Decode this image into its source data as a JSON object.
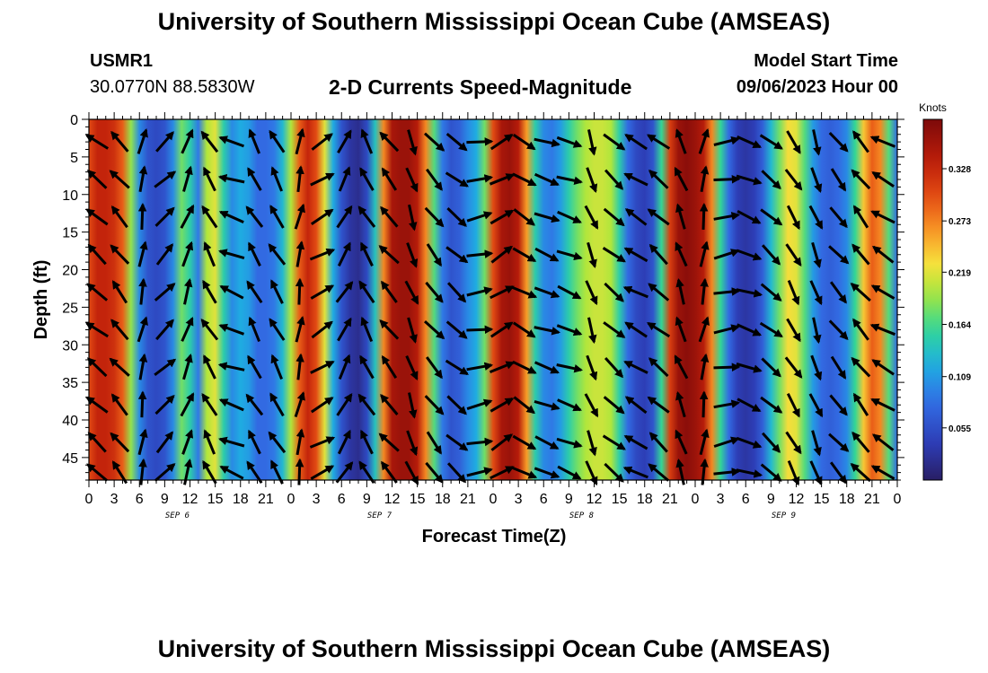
{
  "header": {
    "title": "University of Southern Mississippi Ocean Cube (AMSEAS)",
    "station_id": "USMR1",
    "coordinates": "30.0770N  88.5830W",
    "subtitle": "2-D Currents Speed-Magnitude",
    "start_label": "Model Start Time",
    "start_value": "09/06/2023 Hour 00"
  },
  "footer": {
    "title": "University of Southern Mississippi Ocean Cube (AMSEAS)"
  },
  "chart_data": {
    "type": "heatmap",
    "title": "2-D Currents Speed-Magnitude",
    "xlabel": "Forecast Time(Z)",
    "ylabel": "Depth (ft)",
    "x_hours": [
      0,
      96
    ],
    "x_tick_labels": [
      "0",
      "3",
      "6",
      "9",
      "12",
      "15",
      "18",
      "21",
      "0",
      "3",
      "6",
      "9",
      "12",
      "15",
      "18",
      "21",
      "0",
      "3",
      "6",
      "9",
      "12",
      "15",
      "18",
      "21",
      "0",
      "3",
      "6",
      "9",
      "12",
      "15",
      "18",
      "21",
      "0"
    ],
    "date_labels": [
      {
        "label": "SEP 6",
        "hour": 10.5
      },
      {
        "label": "SEP 7",
        "hour": 34.5
      },
      {
        "label": "SEP 8",
        "hour": 58.5
      },
      {
        "label": "SEP 9",
        "hour": 82.5
      }
    ],
    "y_range_ft": [
      0,
      48
    ],
    "y_ticks": [
      0,
      5,
      10,
      15,
      20,
      25,
      30,
      35,
      40,
      45
    ],
    "colorbar": {
      "unit": "Knots",
      "range": [
        0.0,
        0.38
      ],
      "tick_values": [
        0.055,
        0.109,
        0.164,
        0.219,
        0.273,
        0.328
      ],
      "tick_labels": [
        "0.055",
        "0.109",
        "0.164",
        "0.219",
        "0.273",
        "0.328"
      ]
    },
    "speed_profile": {
      "hours": [
        0,
        1,
        2,
        3,
        4,
        5,
        6,
        7,
        8,
        9,
        10,
        11,
        12,
        13,
        14,
        15,
        16,
        17,
        18,
        19,
        20,
        21,
        22,
        23,
        24,
        25,
        26,
        27,
        28,
        29,
        30,
        31,
        32,
        33,
        34,
        35,
        36,
        37,
        38,
        39,
        40,
        41,
        42,
        43,
        44,
        45,
        46,
        47,
        48,
        49,
        50,
        51,
        52,
        53,
        54,
        55,
        56,
        57,
        58,
        59,
        60,
        61,
        62,
        63,
        64,
        65,
        66,
        67,
        68,
        69,
        70,
        71,
        72,
        73,
        74,
        75,
        76,
        77,
        78,
        79,
        80,
        81,
        82,
        83,
        84,
        85,
        86,
        87,
        88,
        89,
        90,
        91,
        92,
        93,
        94,
        95,
        96
      ],
      "knots": [
        0.3,
        0.33,
        0.33,
        0.32,
        0.29,
        0.19,
        0.1,
        0.06,
        0.05,
        0.06,
        0.1,
        0.18,
        0.15,
        0.09,
        0.2,
        0.22,
        0.15,
        0.1,
        0.12,
        0.11,
        0.08,
        0.08,
        0.09,
        0.13,
        0.2,
        0.29,
        0.33,
        0.3,
        0.22,
        0.12,
        0.06,
        0.03,
        0.02,
        0.05,
        0.14,
        0.27,
        0.35,
        0.36,
        0.36,
        0.34,
        0.27,
        0.17,
        0.09,
        0.06,
        0.07,
        0.1,
        0.12,
        0.18,
        0.3,
        0.35,
        0.36,
        0.34,
        0.26,
        0.15,
        0.1,
        0.09,
        0.11,
        0.15,
        0.18,
        0.2,
        0.21,
        0.21,
        0.2,
        0.15,
        0.08,
        0.05,
        0.04,
        0.06,
        0.16,
        0.31,
        0.36,
        0.37,
        0.36,
        0.34,
        0.27,
        0.16,
        0.08,
        0.04,
        0.03,
        0.04,
        0.07,
        0.13,
        0.18,
        0.23,
        0.22,
        0.17,
        0.11,
        0.08,
        0.07,
        0.08,
        0.1,
        0.16,
        0.24,
        0.29,
        0.27,
        0.17,
        0.08
      ]
    },
    "vector_directions_deg": [
      310,
      320,
      10,
      45,
      20,
      330,
      290,
      330,
      330,
      10,
      60,
      30,
      330,
      320,
      160,
      140,
      130,
      80,
      60,
      120,
      110,
      110,
      160,
      130,
      300,
      310,
      340,
      10,
      80,
      110,
      130,
      150,
      160,
      140,
      320,
      300
    ],
    "vector_time_step_hours": 2.667
  }
}
